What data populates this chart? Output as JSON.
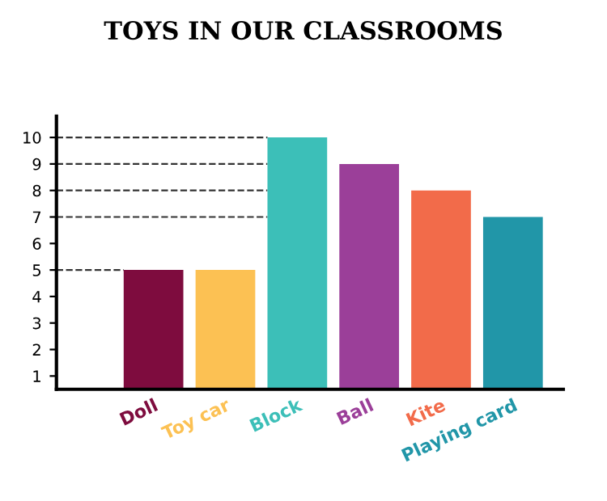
{
  "chart_data": {
    "type": "bar",
    "title": "TOYS IN OUR CLASSROOMS",
    "categories": [
      "Doll",
      "Toy car",
      "Block",
      "Ball",
      "Kite",
      "Playing card"
    ],
    "values": [
      5,
      5,
      10,
      9,
      8,
      7
    ],
    "colors": [
      "#7e0c3e",
      "#fcc153",
      "#3cbfb8",
      "#9b3f99",
      "#f26b4a",
      "#2196a8"
    ],
    "ylim": [
      0.5,
      10.8
    ],
    "yticks": [
      1,
      2,
      3,
      4,
      5,
      6,
      7,
      8,
      9,
      10
    ],
    "grid": false,
    "ref_lines": [
      {
        "axis": "y",
        "value": 5,
        "line_style": "dashed",
        "color": "#333333"
      },
      {
        "axis": "y",
        "value": 10,
        "line_style": "dashed",
        "color": "#333333"
      },
      {
        "axis": "y",
        "value": 9,
        "line_style": "dashed",
        "color": "#333333"
      },
      {
        "axis": "y",
        "value": 8,
        "line_style": "dashed",
        "color": "#333333"
      },
      {
        "axis": "y",
        "value": 7,
        "line_style": "dashed",
        "color": "#333333"
      }
    ]
  }
}
